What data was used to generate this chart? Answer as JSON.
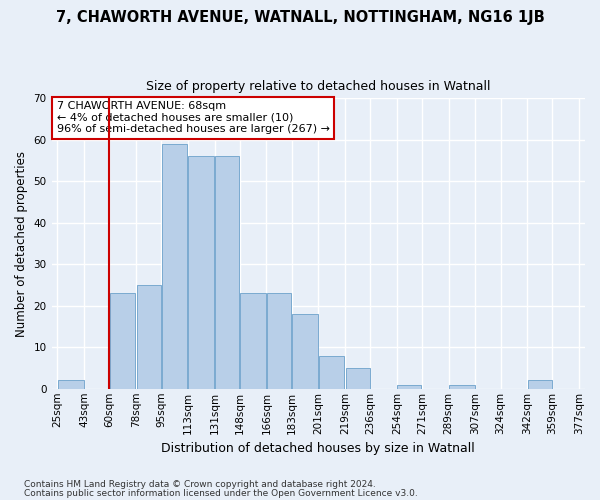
{
  "title1": "7, CHAWORTH AVENUE, WATNALL, NOTTINGHAM, NG16 1JB",
  "title2": "Size of property relative to detached houses in Watnall",
  "xlabel": "Distribution of detached houses by size in Watnall",
  "ylabel": "Number of detached properties",
  "footnote1": "Contains HM Land Registry data © Crown copyright and database right 2024.",
  "footnote2": "Contains public sector information licensed under the Open Government Licence v3.0.",
  "bin_edges": [
    25,
    43,
    60,
    78,
    95,
    113,
    131,
    148,
    166,
    183,
    201,
    219,
    236,
    254,
    271,
    289,
    307,
    324,
    342,
    359,
    377
  ],
  "bin_labels": [
    "25sqm",
    "43sqm",
    "60sqm",
    "78sqm",
    "95sqm",
    "113sqm",
    "131sqm",
    "148sqm",
    "166sqm",
    "183sqm",
    "201sqm",
    "219sqm",
    "236sqm",
    "254sqm",
    "271sqm",
    "289sqm",
    "307sqm",
    "324sqm",
    "342sqm",
    "359sqm",
    "377sqm"
  ],
  "heights": [
    2,
    0,
    23,
    25,
    59,
    56,
    56,
    23,
    23,
    18,
    8,
    5,
    0,
    1,
    0,
    1,
    0,
    0,
    2,
    0
  ],
  "bar_color": "#b8cfe8",
  "bar_edge_color": "#7aaad0",
  "bg_color": "#e8eff8",
  "grid_color": "#ffffff",
  "vline_x_index": 2,
  "vline_color": "#cc0000",
  "annotation_text": "7 CHAWORTH AVENUE: 68sqm\n← 4% of detached houses are smaller (10)\n96% of semi-detached houses are larger (267) →",
  "annotation_box_color": "#ffffff",
  "annotation_box_edge": "#cc0000",
  "ylim": [
    0,
    70
  ],
  "yticks": [
    0,
    10,
    20,
    30,
    40,
    50,
    60,
    70
  ],
  "title1_fontsize": 10.5,
  "title2_fontsize": 9,
  "ylabel_fontsize": 8.5,
  "xlabel_fontsize": 9,
  "tick_fontsize": 7.5,
  "footnote_fontsize": 6.5
}
